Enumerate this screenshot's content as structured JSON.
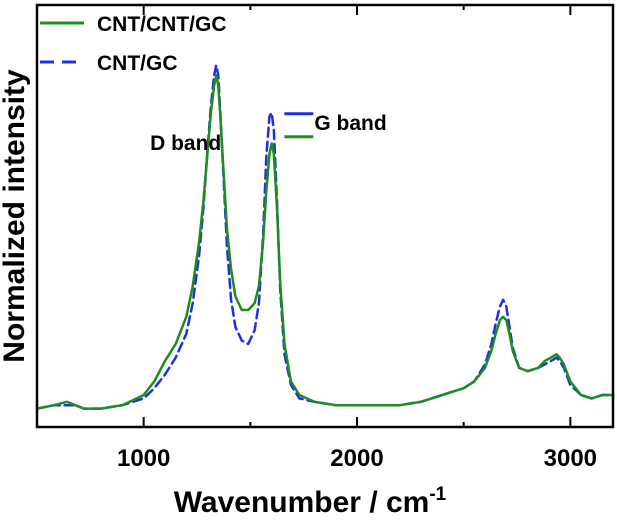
{
  "chart_data": {
    "type": "line",
    "title": "",
    "xlabel": "Wavenumber / cm",
    "xlabel_superscript": "-1",
    "ylabel": "Normalized intensity",
    "xlim": [
      500,
      3200
    ],
    "ylim": [
      0,
      1
    ],
    "xticks": [
      1000,
      2000,
      3000
    ],
    "x_minor_step": 500,
    "yticks": [],
    "grid": false,
    "legend_position": "top-left",
    "annotations": [
      {
        "text": "D band",
        "x": 1030,
        "y": 0.77
      },
      {
        "text": "G band",
        "x": 1800,
        "y": 0.83
      }
    ],
    "series": [
      {
        "name": "CNT/CNT/GC",
        "color": "#1e8c1e",
        "style": "solid",
        "x": [
          500,
          580,
          640,
          680,
          720,
          800,
          900,
          1000,
          1050,
          1100,
          1150,
          1200,
          1230,
          1260,
          1280,
          1300,
          1315,
          1330,
          1340,
          1350,
          1360,
          1375,
          1390,
          1410,
          1430,
          1460,
          1490,
          1520,
          1540,
          1560,
          1575,
          1590,
          1600,
          1610,
          1625,
          1640,
          1660,
          1690,
          1730,
          1800,
          1900,
          2000,
          2100,
          2200,
          2300,
          2400,
          2450,
          2500,
          2550,
          2600,
          2630,
          2650,
          2670,
          2685,
          2700,
          2715,
          2730,
          2760,
          2800,
          2850,
          2880,
          2910,
          2935,
          2950,
          2970,
          3000,
          3050,
          3100,
          3150,
          3200
        ],
        "y": [
          0.01,
          0.02,
          0.03,
          0.02,
          0.01,
          0.01,
          0.02,
          0.05,
          0.09,
          0.15,
          0.2,
          0.28,
          0.37,
          0.5,
          0.62,
          0.77,
          0.88,
          0.96,
          0.99,
          0.96,
          0.86,
          0.7,
          0.54,
          0.42,
          0.34,
          0.3,
          0.3,
          0.32,
          0.37,
          0.5,
          0.65,
          0.76,
          0.79,
          0.76,
          0.6,
          0.38,
          0.2,
          0.09,
          0.05,
          0.03,
          0.02,
          0.02,
          0.02,
          0.02,
          0.03,
          0.05,
          0.06,
          0.07,
          0.09,
          0.13,
          0.18,
          0.23,
          0.27,
          0.28,
          0.27,
          0.23,
          0.18,
          0.13,
          0.12,
          0.13,
          0.15,
          0.16,
          0.17,
          0.16,
          0.14,
          0.09,
          0.05,
          0.04,
          0.05,
          0.05
        ]
      },
      {
        "name": "CNT/GC",
        "color": "#1f2fe6",
        "style": "dashed",
        "x": [
          500,
          580,
          640,
          680,
          720,
          800,
          900,
          1000,
          1050,
          1100,
          1150,
          1200,
          1230,
          1260,
          1280,
          1300,
          1315,
          1330,
          1340,
          1350,
          1360,
          1375,
          1390,
          1410,
          1430,
          1460,
          1490,
          1520,
          1540,
          1560,
          1575,
          1590,
          1600,
          1610,
          1625,
          1640,
          1660,
          1690,
          1730,
          1800,
          1900,
          2000,
          2100,
          2200,
          2300,
          2400,
          2450,
          2500,
          2550,
          2600,
          2630,
          2650,
          2670,
          2685,
          2700,
          2715,
          2730,
          2760,
          2800,
          2850,
          2880,
          2910,
          2935,
          2950,
          2970,
          3000,
          3050,
          3100,
          3150,
          3200
        ],
        "y": [
          0.01,
          0.02,
          0.02,
          0.02,
          0.01,
          0.01,
          0.02,
          0.04,
          0.07,
          0.11,
          0.16,
          0.23,
          0.32,
          0.46,
          0.6,
          0.78,
          0.9,
          0.99,
          1.02,
          0.99,
          0.87,
          0.68,
          0.49,
          0.33,
          0.25,
          0.21,
          0.2,
          0.24,
          0.32,
          0.52,
          0.75,
          0.87,
          0.88,
          0.83,
          0.62,
          0.36,
          0.17,
          0.08,
          0.04,
          0.03,
          0.02,
          0.02,
          0.02,
          0.02,
          0.03,
          0.05,
          0.06,
          0.07,
          0.09,
          0.14,
          0.2,
          0.26,
          0.31,
          0.33,
          0.31,
          0.25,
          0.19,
          0.13,
          0.12,
          0.13,
          0.14,
          0.15,
          0.16,
          0.15,
          0.13,
          0.08,
          0.05,
          0.04,
          0.05,
          0.05
        ]
      }
    ]
  }
}
